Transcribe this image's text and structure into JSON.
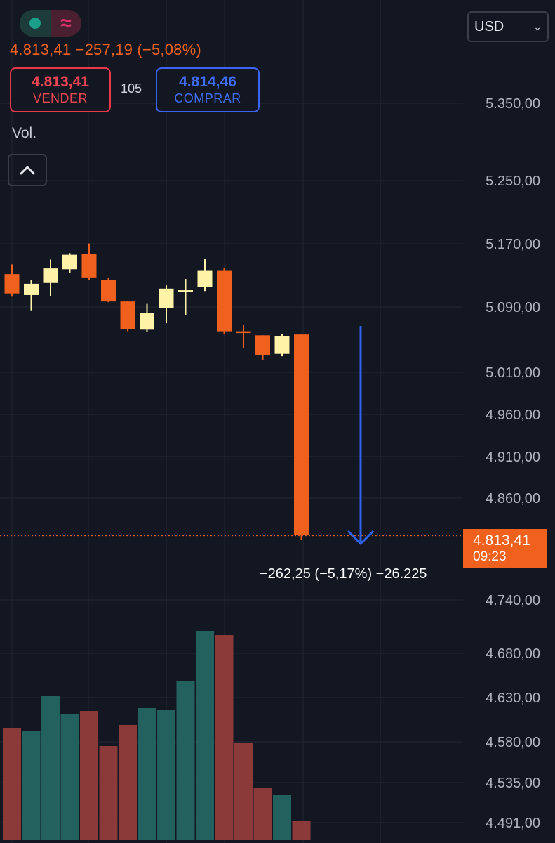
{
  "header": {
    "price_line": "4.813,41  −257,19 (−5,08%)",
    "sell_price": "4.813,41",
    "sell_label": "VENDER",
    "spread": "105",
    "buy_price": "4.814,46",
    "buy_label": "COMPRAR",
    "volume_label": "Vol.",
    "mode_icon": "≈"
  },
  "currency_select": {
    "value": "USD"
  },
  "last_price_badge": {
    "price": "4.813,41",
    "countdown": "09:23"
  },
  "measure_label": "−262,25 (−5,17%) −26.225",
  "colors": {
    "background": "#131722",
    "up_candle": "#fff3a8",
    "down_candle": "#f0611e",
    "up_volume": "#22615d",
    "down_volume": "#8b3939",
    "grid": "#232733",
    "axis_text": "#b2b5be",
    "arrow": "#2f62e8",
    "sell": "#f04452",
    "buy": "#3f6cf5"
  },
  "chart_data": {
    "type": "candlestick",
    "price_axis_ticks": [
      5350,
      5250,
      5170,
      5090,
      5010,
      4960,
      4910,
      4860,
      4740,
      4680,
      4630,
      4580,
      4535,
      4491
    ],
    "price_axis_labels": [
      "5.350,00",
      "5.250,00",
      "5.170,00",
      "5.090,00",
      "5.010,00",
      "4.960,00",
      "4.910,00",
      "4.860,00",
      "4.740,00",
      "4.680,00",
      "4.630,00",
      "4.580,00",
      "4.535,00",
      "4.491,00"
    ],
    "candles": [
      {
        "o": 5138,
        "h": 5150,
        "l": 5110,
        "c": 5114
      },
      {
        "o": 5112,
        "h": 5131,
        "l": 5093,
        "c": 5126
      },
      {
        "o": 5127,
        "h": 5156,
        "l": 5111,
        "c": 5145
      },
      {
        "o": 5144,
        "h": 5164,
        "l": 5139,
        "c": 5162
      },
      {
        "o": 5163,
        "h": 5176,
        "l": 5131,
        "c": 5133
      },
      {
        "o": 5131,
        "h": 5133,
        "l": 5103,
        "c": 5104
      },
      {
        "o": 5104,
        "h": 5104,
        "l": 5067,
        "c": 5070
      },
      {
        "o": 5069,
        "h": 5101,
        "l": 5066,
        "c": 5090
      },
      {
        "o": 5096,
        "h": 5124,
        "l": 5077,
        "c": 5120
      },
      {
        "o": 5116,
        "h": 5132,
        "l": 5087,
        "c": 5118
      },
      {
        "o": 5122,
        "h": 5157,
        "l": 5117,
        "c": 5142
      },
      {
        "o": 5142,
        "h": 5146,
        "l": 5064,
        "c": 5067
      },
      {
        "o": 5067,
        "h": 5075,
        "l": 5046,
        "c": 5066
      },
      {
        "o": 5062,
        "h": 5062,
        "l": 5031,
        "c": 5037
      },
      {
        "o": 5039,
        "h": 5064,
        "l": 5036,
        "c": 5061
      },
      {
        "o": 5063,
        "h": 5063,
        "l": 4808,
        "c": 4814
      }
    ],
    "volume": [
      {
        "v": 160,
        "dir": "down"
      },
      {
        "v": 156,
        "dir": "up"
      },
      {
        "v": 205,
        "dir": "up"
      },
      {
        "v": 180,
        "dir": "up"
      },
      {
        "v": 184,
        "dir": "down"
      },
      {
        "v": 134,
        "dir": "down"
      },
      {
        "v": 164,
        "dir": "down"
      },
      {
        "v": 188,
        "dir": "up"
      },
      {
        "v": 186,
        "dir": "up"
      },
      {
        "v": 226,
        "dir": "up"
      },
      {
        "v": 298,
        "dir": "up"
      },
      {
        "v": 292,
        "dir": "down"
      },
      {
        "v": 139,
        "dir": "down"
      },
      {
        "v": 75,
        "dir": "down"
      },
      {
        "v": 65,
        "dir": "up"
      },
      {
        "v": 28,
        "dir": "down"
      }
    ],
    "last_price": 4813.41,
    "grid": true
  }
}
